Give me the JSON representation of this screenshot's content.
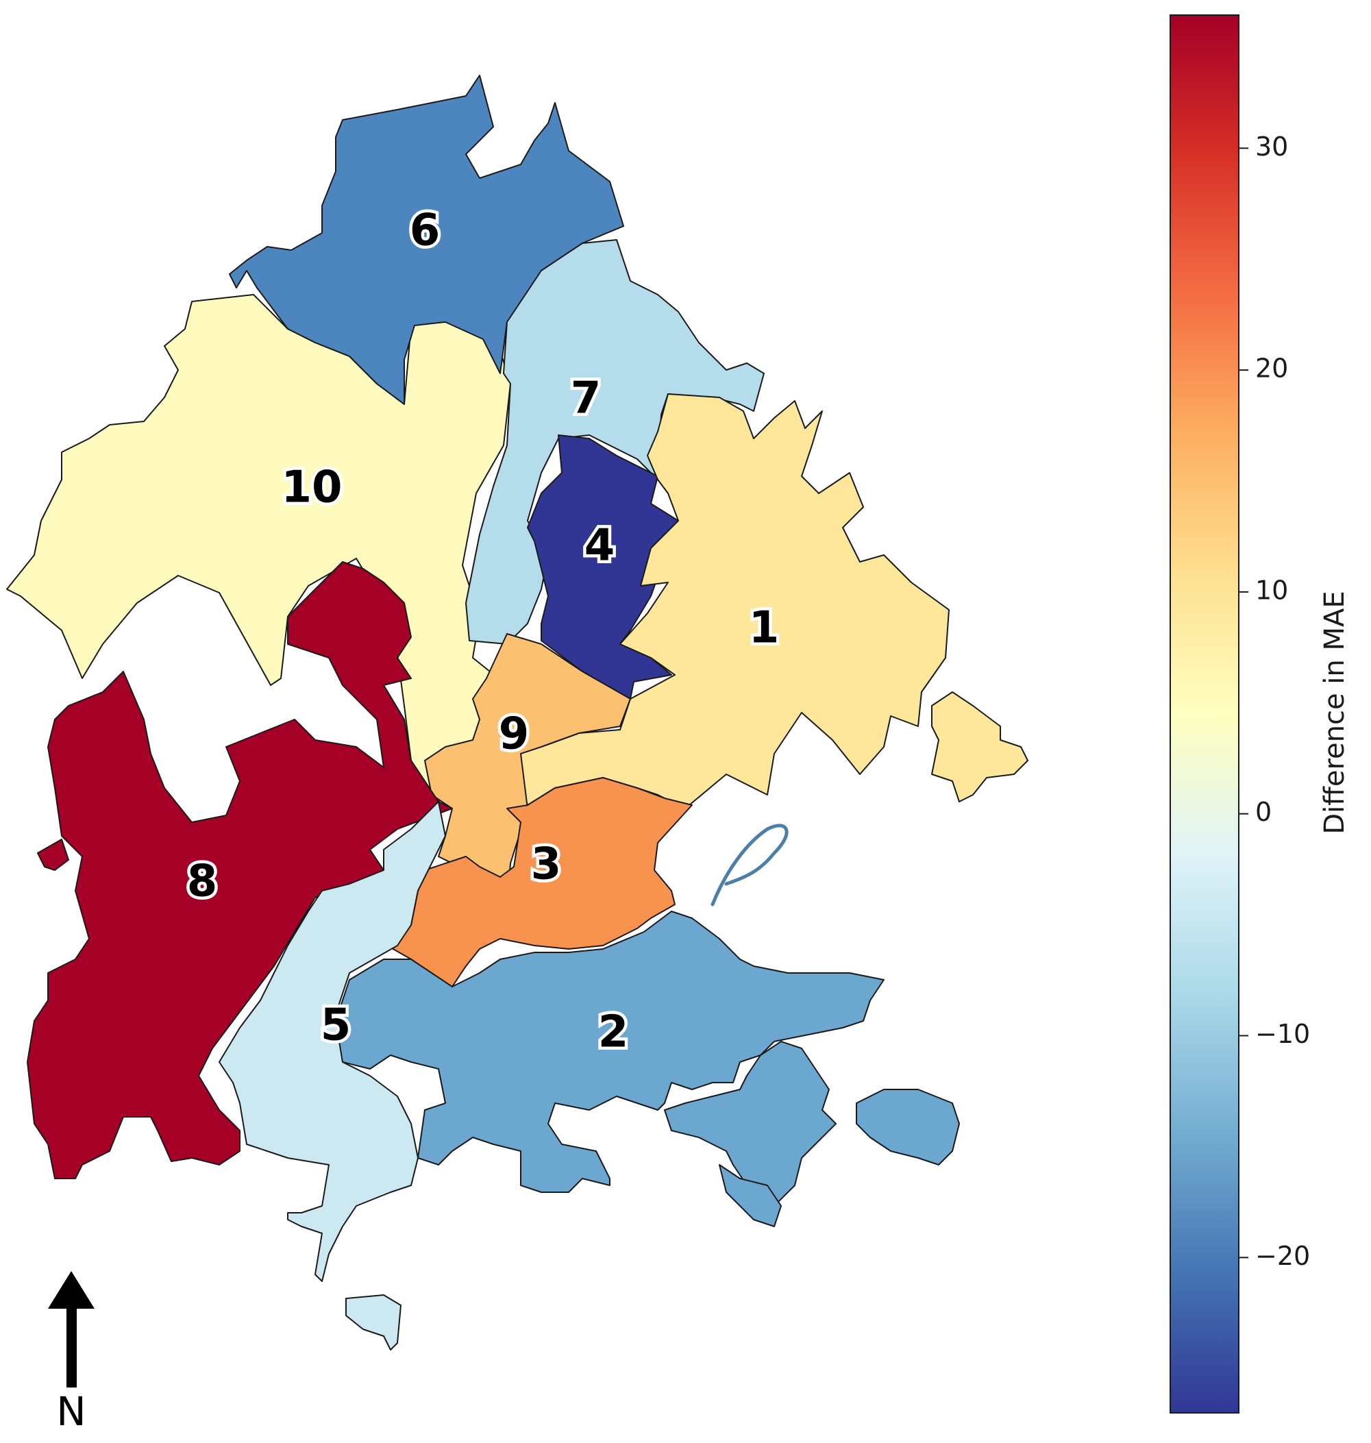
{
  "districts": [
    {
      "id": "1",
      "label": "1",
      "value": 8,
      "color": "#fee79b"
    },
    {
      "id": "2",
      "label": "2",
      "value": -15,
      "color": "#6ca7d0"
    },
    {
      "id": "3",
      "label": "3",
      "value": 20,
      "color": "#f7924f"
    },
    {
      "id": "4",
      "label": "4",
      "value": -27,
      "color": "#313695"
    },
    {
      "id": "5",
      "label": "5",
      "value": -6,
      "color": "#cce9f2"
    },
    {
      "id": "6",
      "label": "6",
      "value": -20,
      "color": "#4d86bf"
    },
    {
      "id": "7",
      "label": "7",
      "value": -8,
      "color": "#b4dcea"
    },
    {
      "id": "8",
      "label": "8",
      "value": 36,
      "color": "#a50026"
    },
    {
      "id": "9",
      "label": "9",
      "value": 13,
      "color": "#fbc170"
    },
    {
      "id": "10",
      "label": "10",
      "value": 5,
      "color": "#fffbbe"
    }
  ],
  "colorbar": {
    "label": "Difference in MAE",
    "colormap": "RdYlBu_r",
    "min": -27,
    "max": 36,
    "ticks": [
      30,
      20,
      10,
      0,
      -10,
      -20
    ],
    "tick_labels": [
      "30",
      "20",
      "10",
      "0",
      "−10",
      "−20"
    ],
    "stops": [
      "#313695",
      "#4575b4",
      "#74add1",
      "#abd9e9",
      "#e0f3f8",
      "#ffffbf",
      "#fee090",
      "#fdae61",
      "#f46d43",
      "#d73027",
      "#a50026"
    ]
  },
  "north_arrow": {
    "letter": "N"
  },
  "river_color": "#4d7ea8"
}
